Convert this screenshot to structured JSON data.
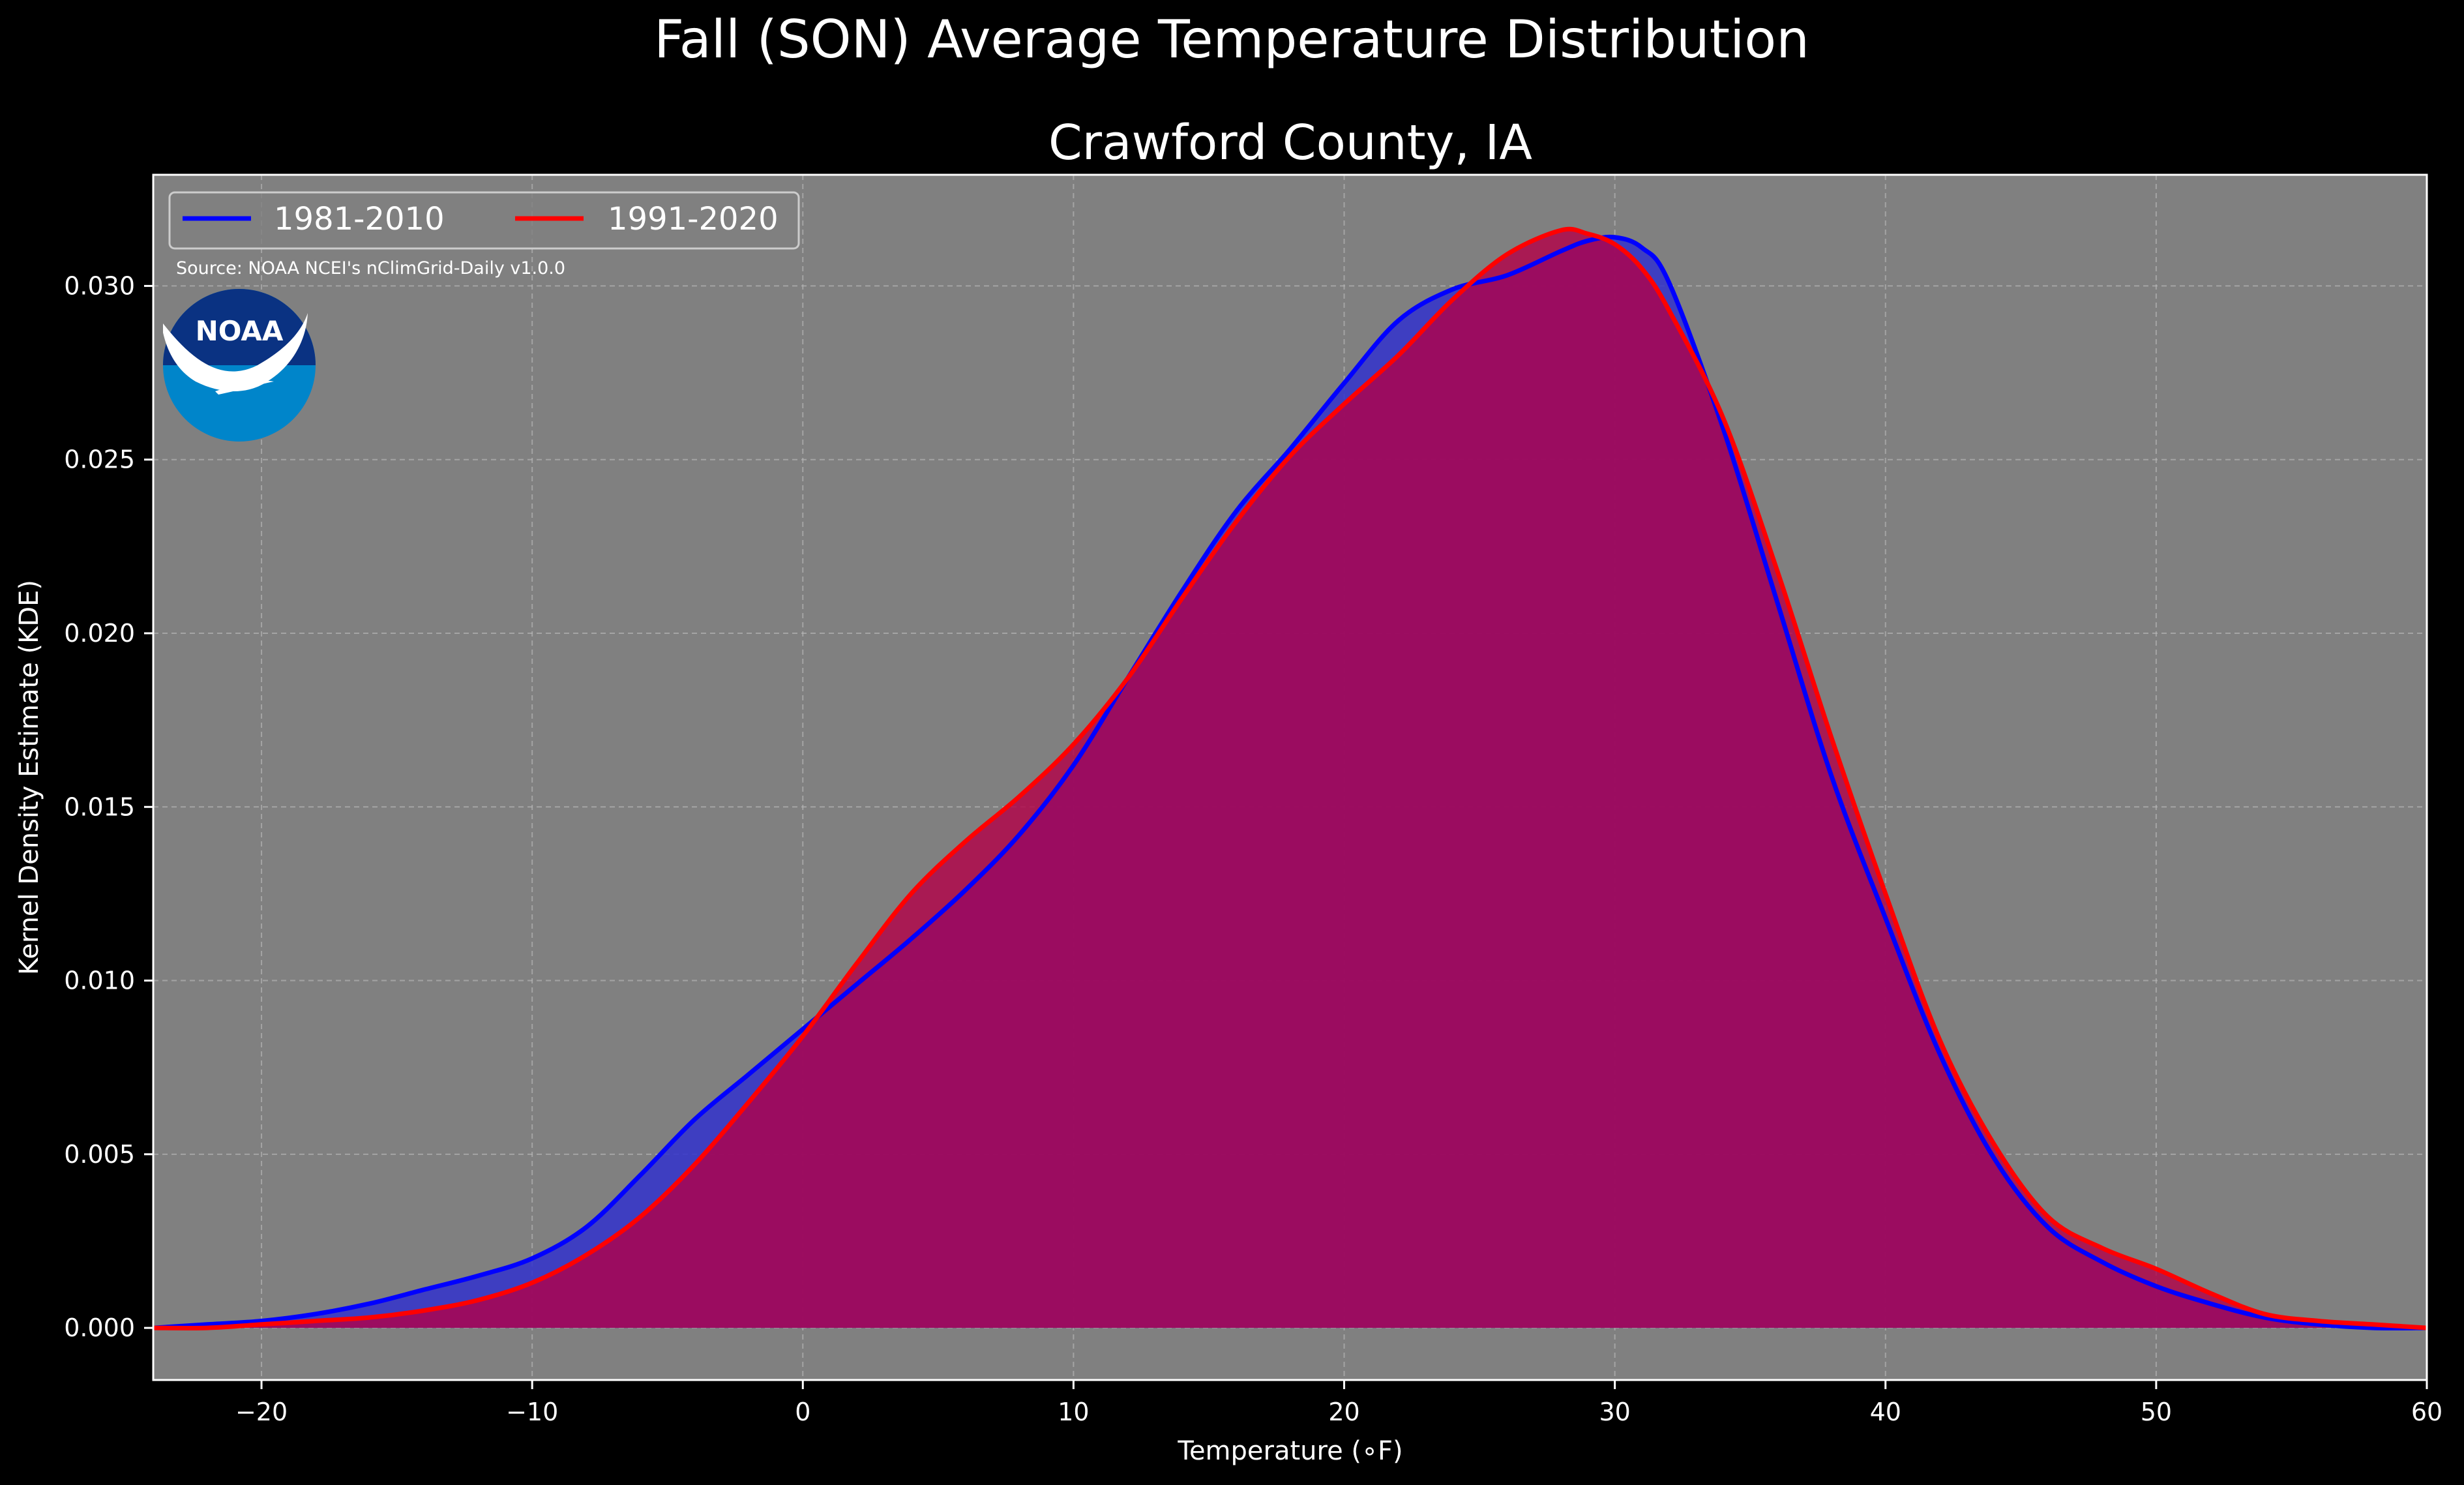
{
  "chart_data": {
    "type": "area",
    "suptitle": "Fall (SON) Average Temperature Distribution",
    "title": "Crawford County, IA",
    "xlabel": "Temperature ($^\\circ$F)",
    "xlabel_display": "Temperature (∘F)",
    "ylabel": "Kernel Density Estimate (KDE)",
    "xlim": [
      -24,
      60
    ],
    "ylim": [
      -0.0015,
      0.0332
    ],
    "xticks": [
      -20,
      -10,
      0,
      10,
      20,
      30,
      40,
      50,
      60
    ],
    "xtick_labels": [
      "−20",
      "−10",
      "0",
      "10",
      "20",
      "30",
      "40",
      "50",
      "60"
    ],
    "yticks": [
      0.0,
      0.005,
      0.01,
      0.015,
      0.02,
      0.025,
      0.03
    ],
    "ytick_labels": [
      "0.000",
      "0.005",
      "0.010",
      "0.015",
      "0.020",
      "0.025",
      "0.030"
    ],
    "grid": true,
    "legend": {
      "placement": "top-left",
      "ncol": 2
    },
    "source_note": "Source: NOAA NCEI's nClimGrid-Daily v1.0.0",
    "logo_text": "NOAA",
    "colors": {
      "background": "#000000",
      "axes_face": "#808080",
      "text": "#ffffff",
      "grid": "#b3b3b3"
    },
    "x": [
      -24,
      -22,
      -20,
      -18,
      -16,
      -14,
      -12,
      -10,
      -8,
      -6,
      -4,
      -2,
      0,
      2,
      4,
      6,
      8,
      10,
      12,
      14,
      16,
      18,
      20,
      22,
      24,
      26,
      28,
      29,
      30,
      31,
      32,
      34,
      36,
      38,
      40,
      42,
      44,
      46,
      48,
      50,
      52,
      54,
      56,
      58,
      60
    ],
    "series": [
      {
        "name": "1981-2010",
        "line_color": "#0000ff",
        "fill_color": "#3333cc",
        "values": [
          0.0,
          0.0001,
          0.0002,
          0.0004,
          0.0007,
          0.0011,
          0.0015,
          0.002,
          0.0029,
          0.0044,
          0.006,
          0.0073,
          0.0086,
          0.0099,
          0.0112,
          0.0126,
          0.0142,
          0.0162,
          0.0187,
          0.0212,
          0.0235,
          0.0253,
          0.0272,
          0.029,
          0.0299,
          0.0303,
          0.031,
          0.0313,
          0.0314,
          0.0311,
          0.0301,
          0.0259,
          0.0209,
          0.0159,
          0.0118,
          0.0079,
          0.0049,
          0.0029,
          0.0019,
          0.0012,
          0.0007,
          0.0003,
          0.0001,
          0.0,
          0.0
        ]
      },
      {
        "name": "1991-2020",
        "line_color": "#ff0000",
        "fill_color": "#b30047",
        "values": [
          0.0,
          0.0,
          0.0001,
          0.0002,
          0.0003,
          0.0005,
          0.0008,
          0.0013,
          0.0021,
          0.0032,
          0.0047,
          0.0065,
          0.0084,
          0.0105,
          0.0125,
          0.014,
          0.0153,
          0.0168,
          0.0187,
          0.021,
          0.0232,
          0.0251,
          0.0266,
          0.028,
          0.0296,
          0.0309,
          0.0316,
          0.0315,
          0.0312,
          0.0305,
          0.0293,
          0.0262,
          0.0218,
          0.017,
          0.0125,
          0.0083,
          0.0053,
          0.0032,
          0.0023,
          0.0017,
          0.001,
          0.0004,
          0.0002,
          0.0001,
          0.0
        ]
      }
    ]
  }
}
